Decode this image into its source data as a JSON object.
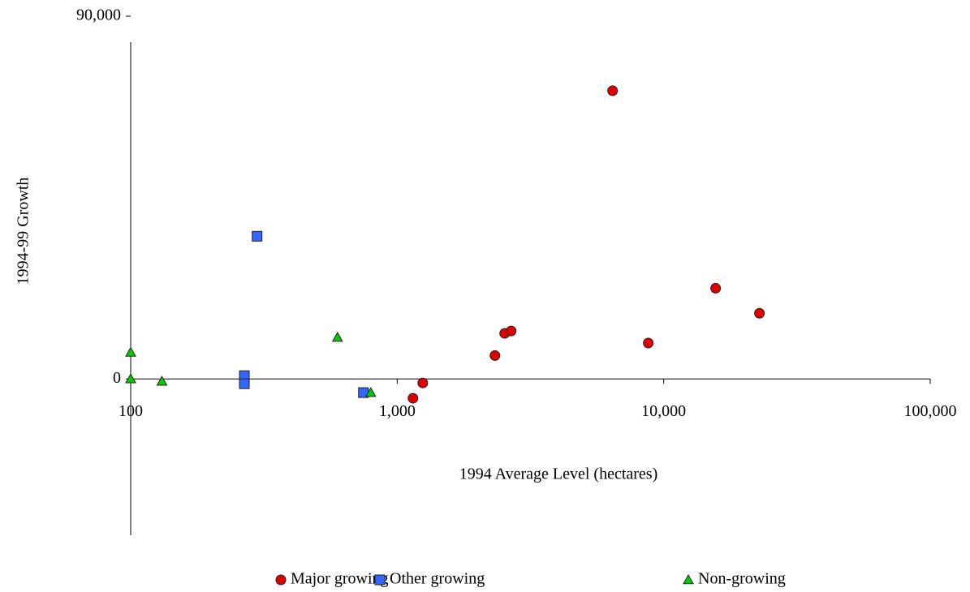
{
  "chart_data": {
    "type": "scatter",
    "x_label": "1994 Average Level (hectares)",
    "y_label": "1994-99 Growth",
    "xscale": "log",
    "xlim": [
      100,
      100000
    ],
    "xticks": [
      100,
      {
        "value": 1000,
        "label": "1,000"
      },
      {
        "value": 10000,
        "label": "10,000"
      },
      {
        "value": 100000,
        "label": "100,000"
      }
    ],
    "ylim": [
      -40000,
      90000
    ],
    "yticks": [
      0,
      {
        "value": 90000,
        "label": "90,000"
      }
    ],
    "legend": "bottom",
    "series": [
      {
        "name": "Major growing",
        "color": "#e00000",
        "marker": "circle",
        "x": [
          1146,
          1247,
          2327,
          2531,
          2677,
          6430,
          8752,
          15660,
          22870
        ],
        "y": [
          -4800,
          -1000,
          5800,
          11300,
          11900,
          71500,
          8900,
          22500,
          16300
        ]
      },
      {
        "name": "Other growing",
        "color": "#3366ff",
        "marker": "square",
        "x": [
          298,
          267,
          267,
          747
        ],
        "y": [
          35400,
          800,
          -1200,
          -3400
        ]
      },
      {
        "name": "Non-growing",
        "color": "#00cc00",
        "marker": "triangle",
        "x": [
          100,
          100,
          131,
          597,
          796
        ],
        "y": [
          6600,
          0,
          -600,
          10300,
          -3400
        ]
      }
    ]
  }
}
